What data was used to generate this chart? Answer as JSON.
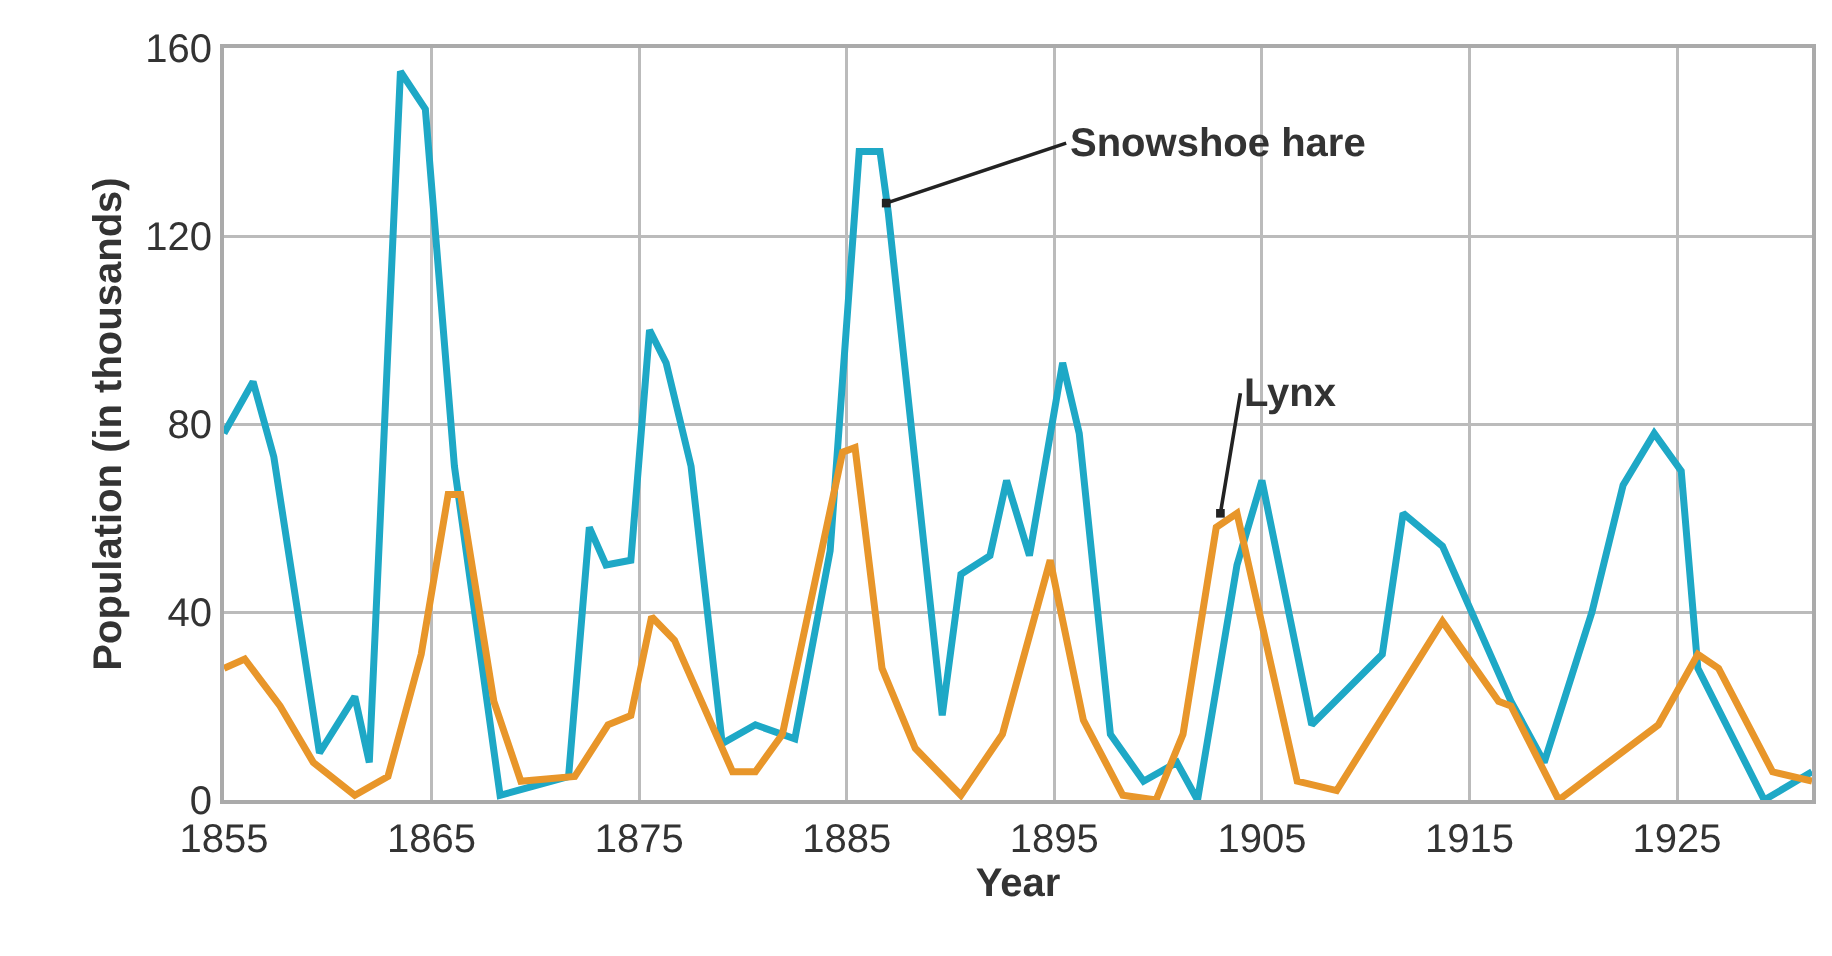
{
  "chart_data": {
    "type": "line",
    "xlabel": "Year",
    "ylabel": "Population (in thousands)",
    "xlim": [
      1855,
      1931.5
    ],
    "xticks": [
      1855,
      1865,
      1875,
      1885,
      1895,
      1905,
      1915,
      1925
    ],
    "ylim": [
      0,
      160
    ],
    "yticks": [
      0,
      40,
      80,
      120,
      160
    ],
    "grid": true,
    "marker": "none",
    "line_style": "solid",
    "series": [
      {
        "color": "#1ea8c6",
        "x": [
          1855,
          1856.4,
          1857.4,
          1859.6,
          1861.3,
          1862,
          1863.5,
          1864.7,
          1866.1,
          1868.3,
          1871.6,
          1872.6,
          1873.4,
          1874.6,
          1875.5,
          1876.3,
          1877.5,
          1879,
          1880.6,
          1882.5,
          1884.2,
          1885.6,
          1886.6,
          1887,
          1889.6,
          1890.5,
          1891.9,
          1892.7,
          1893.8,
          1895.4,
          1896.2,
          1897.7,
          1899.3,
          1900.9,
          1901.9,
          1903.8,
          1905,
          1907.4,
          1910.8,
          1911.8,
          1913.7,
          1917,
          1918.6,
          1920.9,
          1922.4,
          1923.9,
          1925.2,
          1926,
          1929.2,
          1931.5
        ],
        "values": [
          78,
          89,
          73,
          10,
          22,
          8,
          155,
          147,
          71,
          1,
          5,
          58,
          50,
          51,
          100,
          93,
          71,
          12,
          16,
          13,
          53,
          138,
          138,
          125,
          18,
          48,
          52,
          68,
          52,
          93,
          78,
          14,
          4,
          8,
          0,
          50,
          68,
          16,
          31,
          61,
          54,
          21,
          8,
          40,
          67,
          78,
          70,
          28,
          0,
          6
        ]
      },
      {
        "color": "#e8962a",
        "x": [
          1855,
          1856,
          1857.7,
          1859.3,
          1861.3,
          1862.9,
          1864.5,
          1865.8,
          1866.4,
          1868,
          1869.3,
          1871.9,
          1873.5,
          1874.6,
          1875.6,
          1876.7,
          1879.5,
          1880.6,
          1881.9,
          1884.8,
          1885.4,
          1886.7,
          1888.3,
          1890.5,
          1892.5,
          1894.8,
          1896.4,
          1898.3,
          1899.9,
          1901.2,
          1902.8,
          1903.8,
          1906.7,
          1908.6,
          1913.7,
          1916.4,
          1917,
          1919.3,
          1924.1,
          1926,
          1927,
          1929.6,
          1931.5
        ],
        "values": [
          28,
          30,
          20,
          8,
          1,
          5,
          31,
          65,
          65,
          21,
          4,
          5,
          16,
          18,
          39,
          34,
          6,
          6,
          14,
          74,
          75,
          28,
          11,
          1,
          14,
          51,
          17,
          1,
          0,
          14,
          58,
          61,
          4,
          2,
          38,
          21,
          20,
          0,
          16,
          31,
          28,
          6,
          4
        ]
      }
    ],
    "annotations": [
      {
        "text": "Snowshoe hare",
        "x": 1886.9,
        "y": 127
      },
      {
        "text": "Lynx",
        "x": 1903,
        "y": 61
      }
    ]
  }
}
